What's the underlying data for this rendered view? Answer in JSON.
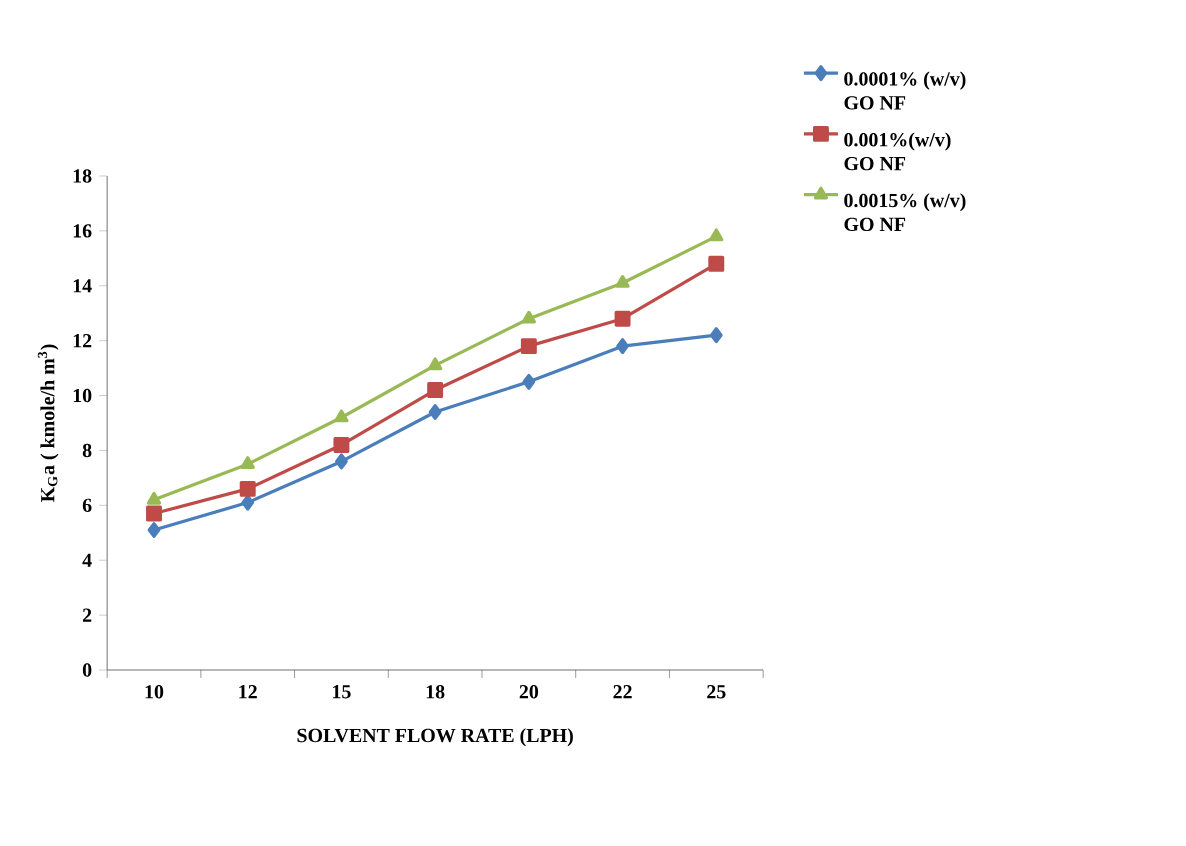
{
  "chart_data": {
    "type": "line",
    "xlabel": "SOLVENT  FLOW RATE  (LPH)",
    "ylabel": "K$_{G}$a ( kmole/h m$^{3}$)",
    "categories": [
      "10",
      "12",
      "15",
      "18",
      "20",
      "22",
      "25"
    ],
    "ylim": [
      0,
      18
    ],
    "yticks": [
      0,
      2,
      4,
      6,
      8,
      10,
      12,
      14,
      16,
      18
    ],
    "legend": "right",
    "line_style": "solid",
    "series": [
      {
        "name": "0.0001% (w/v) GO NF",
        "color": "#4a7ebb",
        "marker": "diamond",
        "values": [
          5.1,
          6.1,
          7.6,
          9.4,
          10.5,
          11.8,
          12.2
        ]
      },
      {
        "name": "0.001%(w/v) GO NF",
        "color": "#be4b48",
        "marker": "square",
        "values": [
          5.7,
          6.6,
          8.2,
          10.2,
          11.8,
          12.8,
          14.8
        ]
      },
      {
        "name": "0.0015% (w/v) GO NF",
        "color": "#98b954",
        "marker": "triangle",
        "values": [
          6.2,
          7.5,
          9.2,
          11.1,
          12.8,
          14.1,
          15.8
        ]
      }
    ]
  }
}
